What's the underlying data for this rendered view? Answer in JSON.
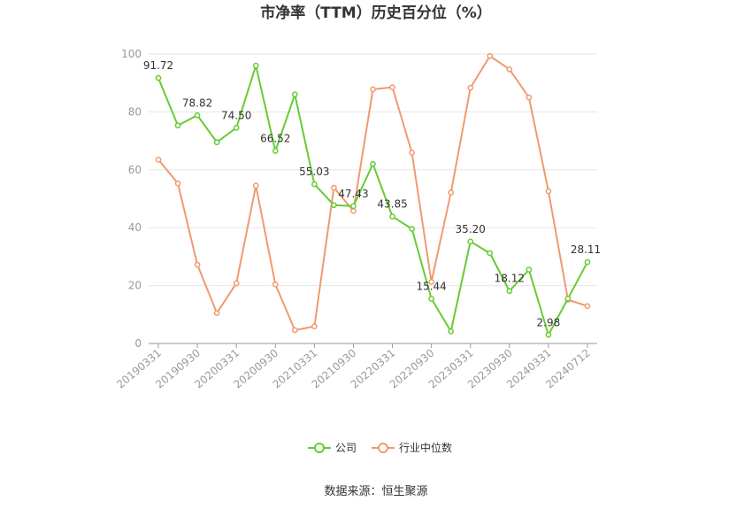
{
  "chart_data": {
    "type": "line",
    "title": "市净率（TTM）历史百分位（%）",
    "source": "数据来源：恒生聚源",
    "ylim": [
      0,
      100
    ],
    "yticks": [
      0,
      20,
      40,
      60,
      80,
      100
    ],
    "grid": true,
    "legend_position": "bottom",
    "x": [
      "20190331",
      "20190630",
      "20190930",
      "20191231",
      "20200331",
      "20200630",
      "20200930",
      "20201231",
      "20210331",
      "20210630",
      "20210930",
      "20211231",
      "20220331",
      "20220630",
      "20220930",
      "20221231",
      "20230331",
      "20230630",
      "20230930",
      "20231231",
      "20240331",
      "20240630",
      "20240712"
    ],
    "xtick_labels": [
      "20190331",
      "20190930",
      "20200331",
      "20200930",
      "20210331",
      "20210930",
      "20220331",
      "20220930",
      "20230331",
      "20230930",
      "20240331",
      "20240712"
    ],
    "series": [
      {
        "name": "公司",
        "color": "#66cc33",
        "values": [
          91.72,
          75.3,
          78.82,
          69.5,
          74.5,
          96.0,
          66.52,
          86.0,
          55.03,
          47.8,
          47.43,
          62.0,
          43.85,
          39.6,
          15.44,
          4.2,
          35.2,
          31.2,
          18.12,
          25.5,
          2.98,
          15.5,
          28.11
        ],
        "labels": [
          "91.72",
          "",
          "78.82",
          "",
          "74.50",
          "",
          "66.52",
          "",
          "55.03",
          "",
          "47.43",
          "",
          "43.85",
          "",
          "15.44",
          "",
          "35.20",
          "",
          "18.12",
          "",
          "2.98",
          "",
          "28.11"
        ]
      },
      {
        "name": "行业中位数",
        "color": "#f09a6e",
        "values": [
          63.5,
          55.3,
          27.2,
          10.5,
          20.8,
          54.5,
          20.4,
          4.6,
          5.9,
          53.8,
          45.8,
          87.8,
          88.5,
          65.9,
          21.3,
          52.1,
          88.3,
          99.3,
          94.7,
          85.0,
          52.6,
          15.1,
          12.9
        ]
      }
    ]
  }
}
